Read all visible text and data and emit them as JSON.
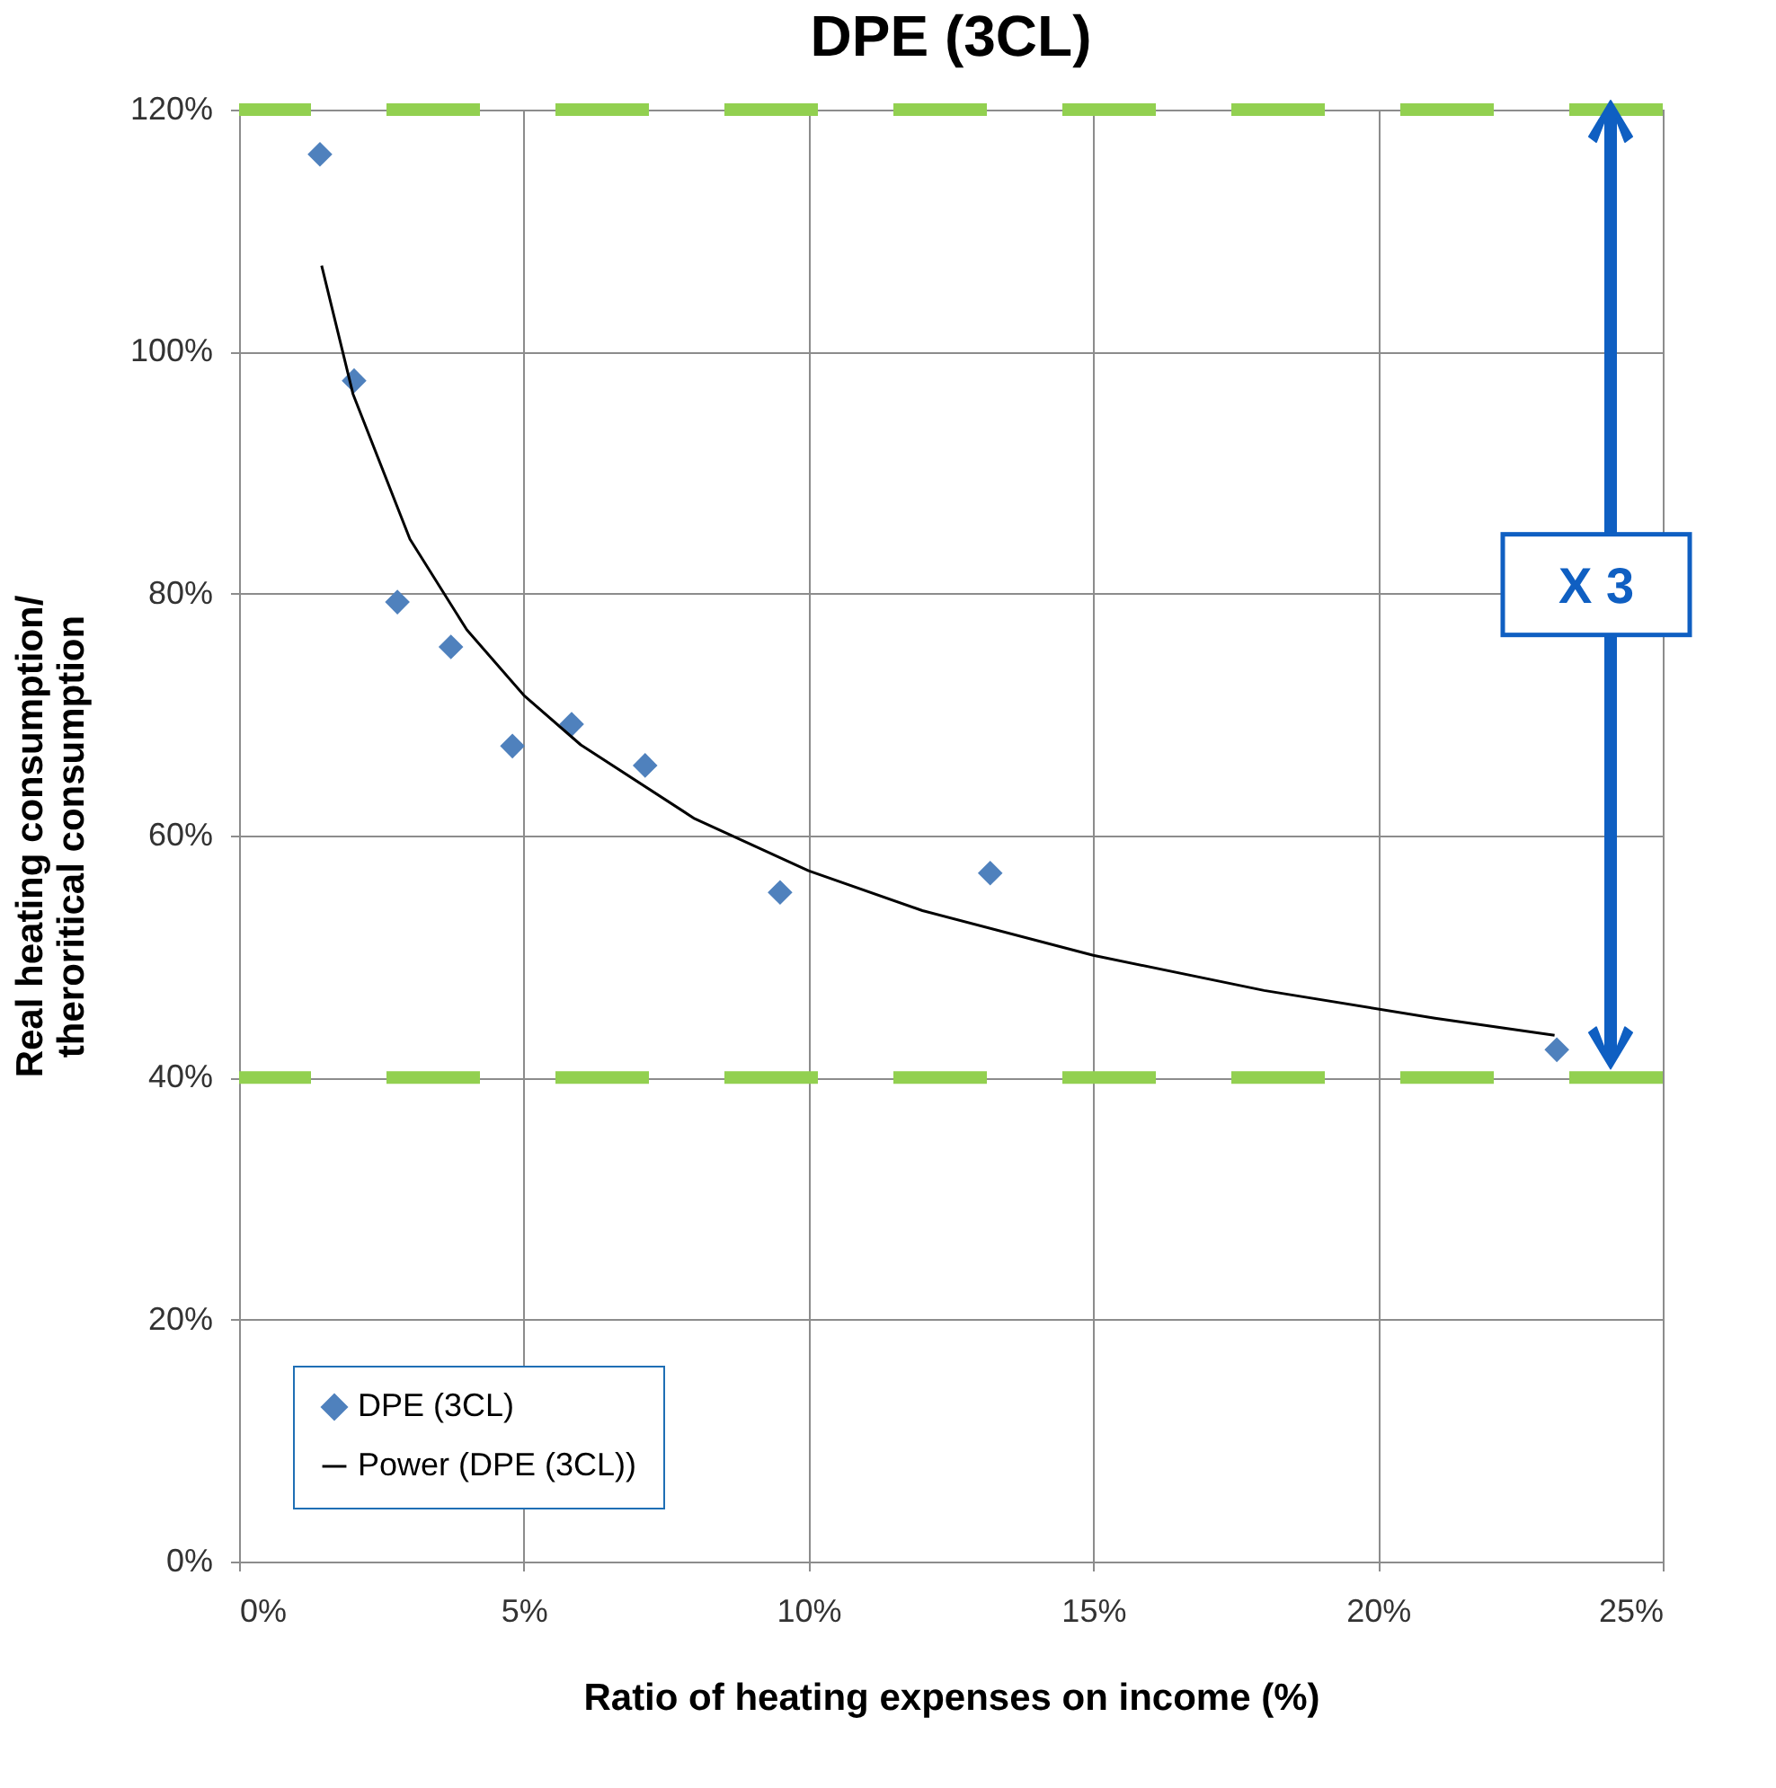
{
  "chart_data": {
    "type": "scatter",
    "title": "DPE (3CL)",
    "xlabel": "Ratio of heating expenses on income (%)",
    "ylabel": "Real heating consumption/\ntheroritical consumption",
    "xlim": [
      0,
      25
    ],
    "ylim": [
      0,
      120
    ],
    "xticks": [
      {
        "value": 0,
        "label": "0%"
      },
      {
        "value": 5,
        "label": "5%"
      },
      {
        "value": 10,
        "label": "10%"
      },
      {
        "value": 15,
        "label": "15%"
      },
      {
        "value": 20,
        "label": "20%"
      },
      {
        "value": 25,
        "label": "25%"
      }
    ],
    "yticks": [
      {
        "value": 0,
        "label": "0%"
      },
      {
        "value": 20,
        "label": "20%"
      },
      {
        "value": 40,
        "label": "40%"
      },
      {
        "value": 60,
        "label": "60%"
      },
      {
        "value": 80,
        "label": "80%"
      },
      {
        "value": 100,
        "label": "100%"
      },
      {
        "value": 120,
        "label": "120%"
      }
    ],
    "grid": true,
    "legend": "bottom left",
    "series": [
      {
        "name": "DPE (3CL)",
        "marker": "diamond",
        "color": "#4f81bd",
        "x": [
          1.42,
          2.02,
          2.78,
          3.72,
          4.8,
          5.84,
          7.13,
          9.5,
          13.19,
          23.14
        ],
        "values": [
          116.3,
          97.6,
          79.3,
          75.6,
          67.4,
          69.2,
          65.8,
          55.3,
          56.9,
          42.3
        ]
      },
      {
        "name": "Power (DPE (3CL))",
        "type": "line",
        "marker": "none",
        "line_style": "solid",
        "color": "#000000",
        "x": [
          1.45,
          2,
          3,
          4,
          5,
          6,
          8,
          10,
          12,
          15,
          18,
          21,
          23.1
        ],
        "values": [
          107.1,
          96.5,
          84.5,
          77,
          71.6,
          67.5,
          61.4,
          57.1,
          53.8,
          50.1,
          47.2,
          44.9,
          43.5
        ]
      }
    ],
    "ref_lines": [
      {
        "axis": "y",
        "value": 120,
        "color": "#92d050",
        "line_style": "dashed"
      },
      {
        "axis": "y",
        "value": 40,
        "color": "#92d050",
        "line_style": "dashed"
      }
    ],
    "annotations": [
      "X 3"
    ]
  }
}
